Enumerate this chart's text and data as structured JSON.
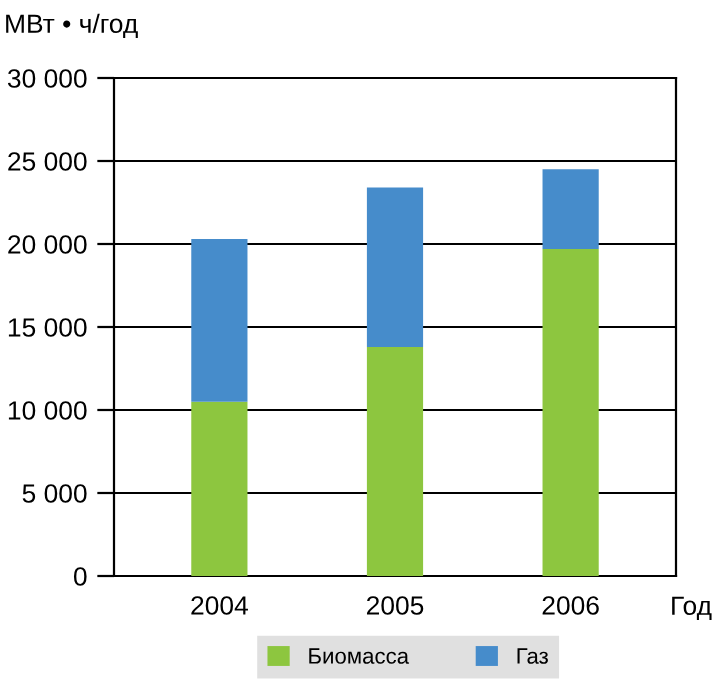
{
  "chart_data": {
    "type": "bar",
    "stacked": true,
    "ylabel": "МВт • ч/год",
    "xlabel": "Год",
    "categories": [
      "2004",
      "2005",
      "2006"
    ],
    "series": [
      {
        "name": "Биомасса",
        "color": "#8dc63f",
        "values": [
          10500,
          13800,
          19700
        ]
      },
      {
        "name": "Газ",
        "color": "#468ccb",
        "values": [
          9800,
          9600,
          4800
        ]
      }
    ],
    "ylim": [
      0,
      30000
    ],
    "yticks": [
      0,
      {
        "value": 5000,
        "label": "5 000"
      },
      {
        "value": 10000,
        "label": "10 000"
      },
      {
        "value": 15000,
        "label": "15 000"
      },
      {
        "value": 20000,
        "label": "20 000"
      },
      {
        "value": 25000,
        "label": "25 000"
      },
      {
        "value": 30000,
        "label": "30 000"
      }
    ],
    "grid": "y",
    "legend": "bottom"
  }
}
